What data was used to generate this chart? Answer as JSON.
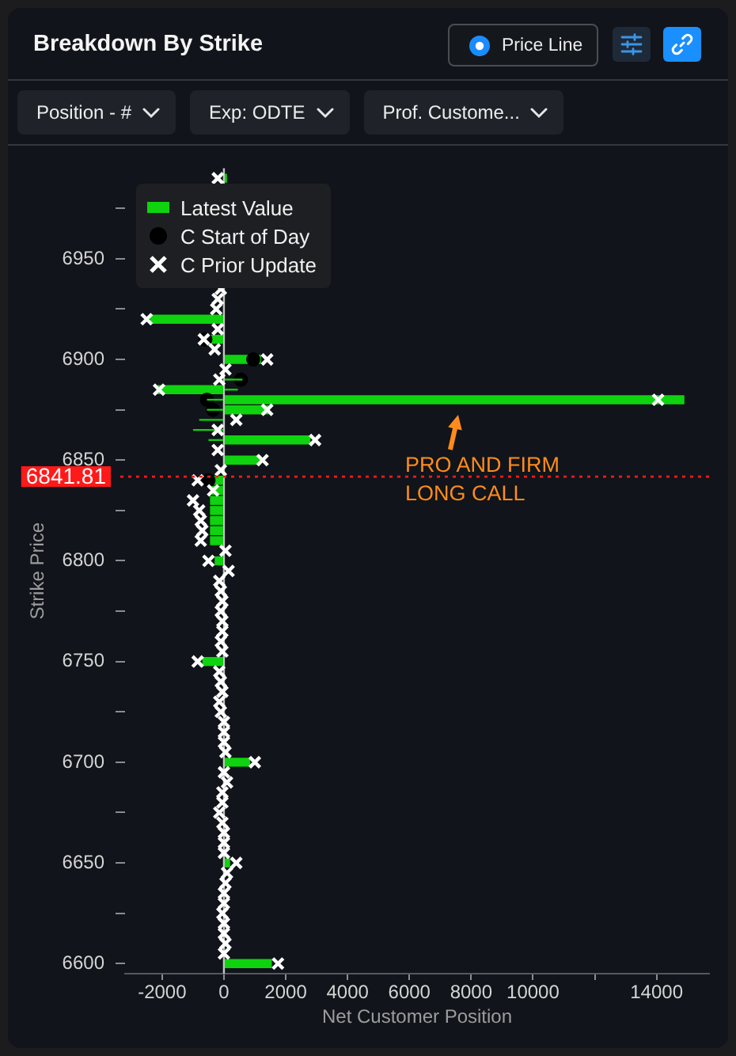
{
  "chart_data": {
    "type": "bar",
    "orientation": "horizontal",
    "title": "Breakdown By Strike",
    "xlabel": "Net Customer Position",
    "ylabel": "Strike Price",
    "annotations": [
      "Price Line",
      "Position - #",
      "Exp: ODTE",
      "Prof. Custome...",
      "PRO AND FIRM LONG CALL"
    ],
    "x": [
      6990,
      6935,
      6930,
      6925,
      6920,
      6915,
      6910,
      6905,
      6900,
      6895,
      6890,
      6885,
      6880,
      6875,
      6870,
      6865,
      6860,
      6855,
      6850,
      6845,
      6840,
      6835,
      6830,
      6825,
      6820,
      6815,
      6810,
      6805,
      6800,
      6795,
      6790,
      6785,
      6780,
      6775,
      6770,
      6765,
      6760,
      6755,
      6750,
      6745,
      6740,
      6735,
      6730,
      6725,
      6720,
      6715,
      6710,
      6705,
      6700,
      6695,
      6690,
      6685,
      6680,
      6675,
      6670,
      6665,
      6660,
      6655,
      6650,
      6645,
      6640,
      6635,
      6630,
      6625,
      6620,
      6615,
      6610,
      6605,
      6600
    ],
    "series": [
      {
        "name": "Latest Value",
        "color": "#0ed30e",
        "values": [
          100,
          null,
          null,
          null,
          -2400,
          null,
          -450,
          null,
          1200,
          null,
          null,
          -2150,
          14900,
          1450,
          null,
          null,
          2800,
          null,
          1200,
          null,
          -400,
          -400,
          -450,
          -450,
          -450,
          -450,
          -450,
          null,
          -300,
          null,
          null,
          null,
          null,
          null,
          null,
          null,
          null,
          null,
          -700,
          null,
          null,
          null,
          null,
          null,
          null,
          null,
          null,
          null,
          850,
          null,
          null,
          null,
          null,
          null,
          null,
          null,
          null,
          null,
          200,
          null,
          null,
          null,
          null,
          null,
          null,
          null,
          null,
          null,
          1550
        ]
      },
      {
        "name": "C Start of Day",
        "type": "scatter",
        "marker": "circle",
        "color": "#000000",
        "values": [
          null,
          null,
          null,
          null,
          null,
          null,
          -600,
          null,
          950,
          null,
          550,
          null,
          -550,
          -350,
          null,
          null,
          null,
          null,
          null,
          null,
          -500,
          null,
          null,
          null,
          null,
          null,
          null,
          null,
          null,
          null,
          null,
          null,
          null,
          null,
          null,
          null,
          null,
          null,
          null,
          null,
          null,
          null,
          null,
          null,
          null,
          null,
          null,
          null,
          null,
          null,
          null,
          null,
          null,
          null,
          null,
          null,
          null,
          null,
          null,
          null,
          null,
          null,
          null,
          null,
          null,
          null,
          null,
          null,
          null
        ]
      },
      {
        "name": "C Prior Update",
        "type": "scatter",
        "marker": "cross",
        "color": "#ffffff",
        "values": [
          -200,
          -100,
          -200,
          -250,
          -2500,
          -200,
          -650,
          -300,
          1400,
          50,
          -150,
          -2100,
          14050,
          1400,
          400,
          -200,
          2950,
          -200,
          1250,
          -100,
          -850,
          -350,
          -1000,
          -800,
          -750,
          -700,
          -750,
          50,
          -500,
          150,
          -150,
          -100,
          -50,
          -100,
          -50,
          -50,
          -100,
          -50,
          -850,
          -150,
          -100,
          -50,
          -150,
          -100,
          0,
          0,
          0,
          50,
          1000,
          0,
          100,
          -50,
          -50,
          -150,
          -50,
          0,
          0,
          0,
          400,
          100,
          50,
          0,
          0,
          -50,
          0,
          0,
          50,
          0,
          1750
        ]
      },
      {
        "type": "bar",
        "color": "#0ed30e",
        "values": [
          null,
          null,
          null,
          null,
          null,
          null,
          null,
          null,
          null,
          null,
          600,
          450,
          -550,
          -550,
          -800,
          -1000,
          -500,
          null,
          null,
          null,
          null,
          null,
          null,
          null,
          null,
          null,
          null,
          null,
          null,
          null,
          null,
          null,
          null,
          null,
          null,
          null,
          null,
          null,
          null,
          null,
          null,
          null,
          null,
          null,
          null,
          null,
          null,
          null,
          null,
          null,
          null,
          null,
          null,
          null,
          null,
          null,
          null,
          null,
          null,
          null,
          null,
          null,
          null,
          null,
          null,
          null,
          null,
          null,
          null
        ]
      }
    ],
    "xlim": [
      -3200,
      15700
    ],
    "xticks": [
      -2000,
      0,
      2000,
      4000,
      6000,
      8000,
      10000,
      {
        "value": 12000,
        "label": null
      },
      14000
    ],
    "ylim": [
      6595,
      6995
    ],
    "yticks": [
      6600,
      {
        "value": 6625,
        "label": null
      },
      6650,
      {
        "value": 6675,
        "label": null
      },
      6700,
      {
        "value": 6725,
        "label": null
      },
      6750,
      {
        "value": 6775,
        "label": null
      },
      6800,
      {
        "value": 6825,
        "label": null
      },
      6850,
      {
        "value": 6875,
        "label": null
      },
      6900,
      {
        "value": 6925,
        "label": null
      },
      6950,
      {
        "value": 6975,
        "label": null
      }
    ],
    "ref_lines": [
      {
        "axis": "y",
        "value": 6841.81,
        "label": "6841.81",
        "color": "#ff1a1a",
        "line_style": "dotted"
      }
    ],
    "legend": "top left"
  }
}
